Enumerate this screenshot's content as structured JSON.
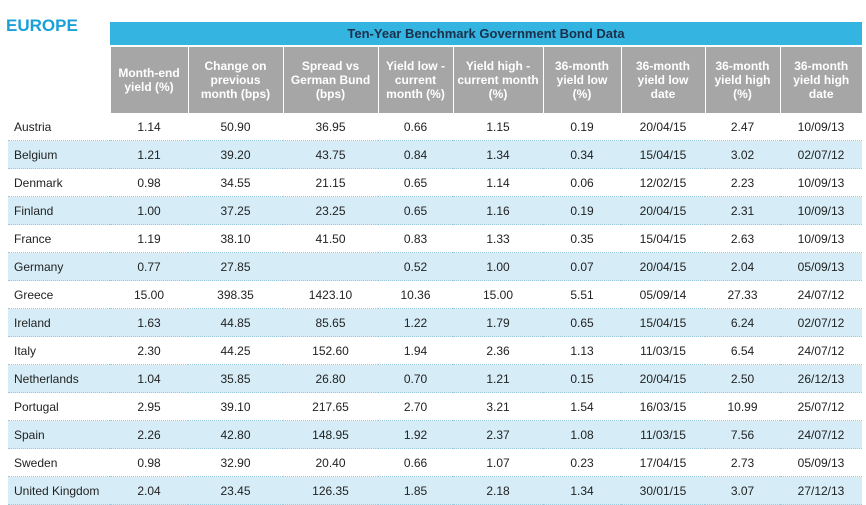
{
  "header": {
    "region": "EUROPE",
    "title": "Ten-Year Benchmark Government Bond Data"
  },
  "table": {
    "columns": [
      "Month-end yield (%)",
      "Change on previous month (bps)",
      "Spread vs German Bund (bps)",
      "Yield low - current month (%)",
      "Yield high - current month (%)",
      "36-month yield low (%)",
      "36-month yield low date",
      "36-month yield high (%)",
      "36-month yield high date"
    ],
    "rows": [
      [
        "Austria",
        "1.14",
        "50.90",
        "36.95",
        "0.66",
        "1.15",
        "0.19",
        "20/04/15",
        "2.47",
        "10/09/13"
      ],
      [
        "Belgium",
        "1.21",
        "39.20",
        "43.75",
        "0.84",
        "1.34",
        "0.34",
        "15/04/15",
        "3.02",
        "02/07/12"
      ],
      [
        "Denmark",
        "0.98",
        "34.55",
        "21.15",
        "0.65",
        "1.14",
        "0.06",
        "12/02/15",
        "2.23",
        "10/09/13"
      ],
      [
        "Finland",
        "1.00",
        "37.25",
        "23.25",
        "0.65",
        "1.16",
        "0.19",
        "20/04/15",
        "2.31",
        "10/09/13"
      ],
      [
        "France",
        "1.19",
        "38.10",
        "41.50",
        "0.83",
        "1.33",
        "0.35",
        "15/04/15",
        "2.63",
        "10/09/13"
      ],
      [
        "Germany",
        "0.77",
        "27.85",
        null,
        "0.52",
        "1.00",
        "0.07",
        "20/04/15",
        "2.04",
        "05/09/13"
      ],
      [
        "Greece",
        "15.00",
        "398.35",
        "1423.10",
        "10.36",
        "15.00",
        "5.51",
        "05/09/14",
        "27.33",
        "24/07/12"
      ],
      [
        "Ireland",
        "1.63",
        "44.85",
        "85.65",
        "1.22",
        "1.79",
        "0.65",
        "15/04/15",
        "6.24",
        "02/07/12"
      ],
      [
        "Italy",
        "2.30",
        "44.25",
        "152.60",
        "1.94",
        "2.36",
        "1.13",
        "11/03/15",
        "6.54",
        "24/07/12"
      ],
      [
        "Netherlands",
        "1.04",
        "35.85",
        "26.80",
        "0.70",
        "1.21",
        "0.15",
        "20/04/15",
        "2.50",
        "26/12/13"
      ],
      [
        "Portugal",
        "2.95",
        "39.10",
        "217.65",
        "2.70",
        "3.21",
        "1.54",
        "16/03/15",
        "10.99",
        "25/07/12"
      ],
      [
        "Spain",
        "2.26",
        "42.80",
        "148.95",
        "1.92",
        "2.37",
        "1.08",
        "11/03/15",
        "7.56",
        "24/07/12"
      ],
      [
        "Sweden",
        "0.98",
        "32.90",
        "20.40",
        "0.66",
        "1.07",
        "0.23",
        "17/04/15",
        "2.73",
        "05/09/13"
      ],
      [
        "United Kingdom",
        "2.04",
        "23.45",
        "126.35",
        "1.85",
        "2.18",
        "1.34",
        "30/01/15",
        "3.07",
        "27/12/13"
      ]
    ]
  }
}
